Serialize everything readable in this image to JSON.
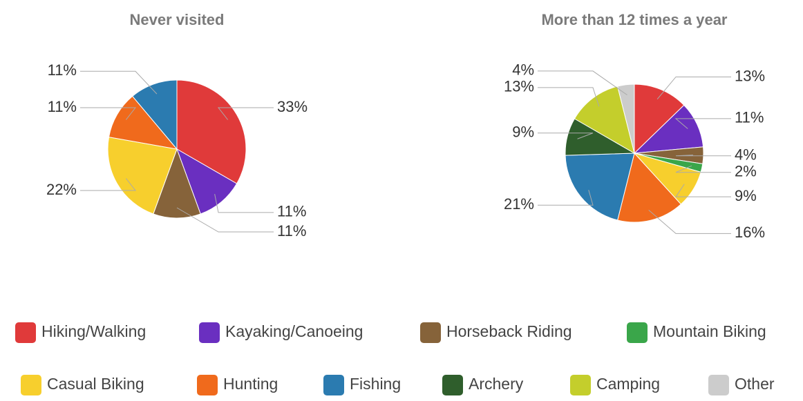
{
  "chart_data": [
    {
      "type": "pie",
      "title": "Never visited",
      "values": [
        33,
        11,
        11,
        null,
        22,
        11,
        11,
        null,
        null,
        null
      ],
      "value_labels": [
        "33%",
        "11%",
        "11%",
        null,
        "22%",
        "11%",
        "11%",
        null,
        null,
        null
      ]
    },
    {
      "type": "pie",
      "title": "More than 12 times a year",
      "values": [
        13,
        11,
        4,
        2,
        9,
        16,
        21,
        9,
        13,
        4
      ],
      "value_labels": [
        "13%",
        "11%",
        "4%",
        "2%",
        "9%",
        "16%",
        "21%",
        "9%",
        "13%",
        "4%"
      ]
    }
  ],
  "legend": {
    "names": [
      "Hiking/Walking",
      "Kayaking/Canoeing",
      "Horseback Riding",
      "Mountain Biking",
      "Casual Biking",
      "Hunting",
      "Fishing",
      "Archery",
      "Camping",
      "Other"
    ],
    "colors": [
      "#e03a3a",
      "#6a2fc0",
      "#86633a",
      "#3aa64a",
      "#f7cf2d",
      "#f06a1c",
      "#2b7bb0",
      "#2f5e2c",
      "#c4ce2c",
      "#cccccc"
    ]
  }
}
